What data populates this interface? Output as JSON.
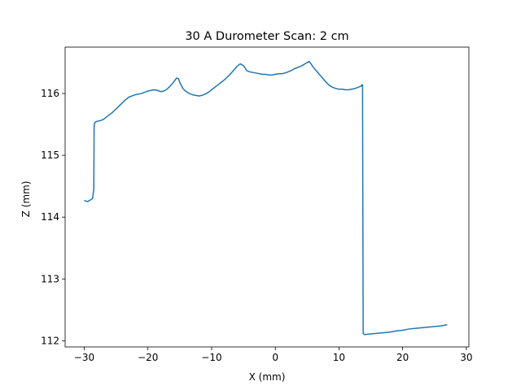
{
  "chart_data": {
    "type": "line",
    "title": "30 A Durometer Scan: 2 cm",
    "xlabel": "X (mm)",
    "ylabel": "Z (mm)",
    "xlim": [
      -33.0,
      30.4
    ],
    "ylim": [
      111.9,
      116.75
    ],
    "xticks": [
      -30,
      -20,
      -10,
      0,
      10,
      20,
      30
    ],
    "yticks": [
      112,
      113,
      114,
      115,
      116
    ],
    "xtick_labels": [
      "−30",
      "−20",
      "−10",
      "0",
      "10",
      "20",
      "30"
    ],
    "ytick_labels": [
      "112",
      "113",
      "114",
      "115",
      "116"
    ],
    "grid": false,
    "color": "#1f77b4",
    "series": [
      {
        "x": [
          -30.0,
          -29.5,
          -29.0,
          -28.7,
          -28.5,
          -28.45,
          -28.4,
          -28.2,
          -28.0,
          -27.5,
          -27.0,
          -26.5,
          -26.0,
          -25.5,
          -25.0,
          -24.5,
          -24.0,
          -23.5,
          -23.0,
          -22.5,
          -22.0,
          -21.5,
          -21.0,
          -20.5,
          -20.0,
          -19.5,
          -19.0,
          -18.5,
          -18.0,
          -17.5,
          -17.0,
          -16.5,
          -16.0,
          -15.5,
          -15.2,
          -15.0,
          -14.7,
          -14.5,
          -14.0,
          -13.5,
          -13.0,
          -12.5,
          -12.0,
          -11.5,
          -11.0,
          -10.5,
          -10.0,
          -9.5,
          -9.0,
          -8.5,
          -8.0,
          -7.5,
          -7.0,
          -6.5,
          -6.0,
          -5.5,
          -5.0,
          -4.7,
          -4.5,
          -4.0,
          -3.5,
          -3.0,
          -2.5,
          -2.0,
          -1.5,
          -1.0,
          -0.5,
          0.0,
          0.5,
          1.0,
          1.5,
          2.0,
          2.5,
          3.0,
          3.5,
          4.0,
          4.5,
          5.0,
          5.3,
          5.6,
          6.0,
          6.5,
          7.0,
          7.5,
          8.0,
          8.5,
          9.0,
          9.5,
          10.0,
          10.5,
          11.0,
          11.5,
          12.0,
          12.5,
          13.0,
          13.5,
          13.6,
          13.7,
          13.8,
          14.0,
          15.0,
          16.0,
          17.0,
          18.0,
          19.0,
          20.0,
          21.0,
          22.0,
          23.0,
          24.0,
          25.0,
          26.0,
          27.0
        ],
        "y": [
          114.27,
          114.25,
          114.28,
          114.3,
          114.45,
          115.45,
          115.52,
          115.54,
          115.55,
          115.56,
          115.58,
          115.62,
          115.66,
          115.7,
          115.75,
          115.8,
          115.85,
          115.9,
          115.94,
          115.96,
          115.98,
          115.99,
          116.0,
          116.02,
          116.04,
          116.05,
          116.06,
          116.05,
          116.03,
          116.04,
          116.07,
          116.12,
          116.18,
          116.25,
          116.24,
          116.18,
          116.12,
          116.08,
          116.03,
          116.0,
          115.98,
          115.97,
          115.96,
          115.97,
          115.99,
          116.02,
          116.06,
          116.1,
          116.14,
          116.18,
          116.22,
          116.27,
          116.32,
          116.38,
          116.44,
          116.48,
          116.45,
          116.41,
          116.37,
          116.35,
          116.34,
          116.33,
          116.32,
          116.31,
          116.31,
          116.3,
          116.3,
          116.31,
          116.32,
          116.32,
          116.33,
          116.35,
          116.37,
          116.4,
          116.42,
          116.44,
          116.47,
          116.5,
          116.52,
          116.48,
          116.42,
          116.36,
          116.3,
          116.24,
          116.18,
          116.13,
          116.1,
          116.08,
          116.07,
          116.07,
          116.06,
          116.06,
          116.07,
          116.08,
          116.1,
          116.12,
          116.14,
          116.14,
          112.12,
          112.1,
          112.11,
          112.12,
          112.13,
          112.14,
          112.16,
          112.17,
          112.19,
          112.2,
          112.21,
          112.22,
          112.23,
          112.24,
          112.26
        ]
      }
    ]
  }
}
